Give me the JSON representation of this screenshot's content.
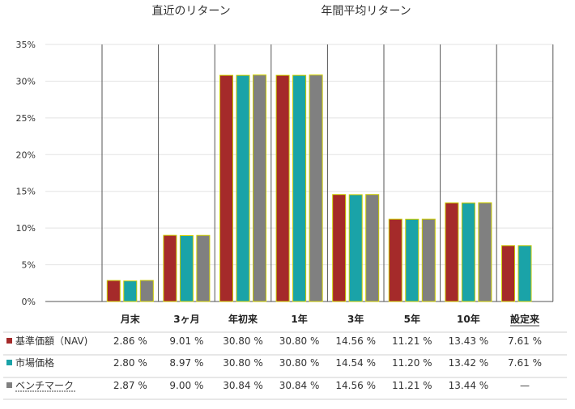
{
  "group_titles": {
    "recent": "直近のリターン",
    "annual": "年間平均リターン"
  },
  "chart_data": {
    "type": "bar",
    "categories": [
      "月末",
      "3ヶ月",
      "年初来",
      "1年",
      "3年",
      "5年",
      "10年",
      "設定来"
    ],
    "series": [
      {
        "name": "基準価額（NAV)",
        "color": "#a52a2a",
        "values": [
          2.86,
          9.01,
          30.8,
          30.8,
          14.56,
          11.21,
          13.43,
          7.61
        ],
        "labels": [
          "2.86 %",
          "9.01 %",
          "30.80 %",
          "30.80 %",
          "14.56 %",
          "11.21 %",
          "13.43 %",
          "7.61 %"
        ]
      },
      {
        "name": "市場価格",
        "color": "#1aa3a8",
        "values": [
          2.8,
          8.97,
          30.8,
          30.8,
          14.54,
          11.2,
          13.42,
          7.61
        ],
        "labels": [
          "2.80 %",
          "8.97 %",
          "30.80 %",
          "30.80 %",
          "14.54 %",
          "11.20 %",
          "13.42 %",
          "7.61 %"
        ]
      },
      {
        "name": "ベンチマーク",
        "color": "#808080",
        "values": [
          2.87,
          9.0,
          30.84,
          30.84,
          14.56,
          11.21,
          13.44,
          null
        ],
        "labels": [
          "2.87 %",
          "9.00 %",
          "30.84 %",
          "30.84 %",
          "14.56 %",
          "11.21 %",
          "13.44 %",
          "—"
        ]
      }
    ],
    "yticks": [
      "0%",
      "5%",
      "10%",
      "15%",
      "20%",
      "25%",
      "30%",
      "35%"
    ],
    "ylim": [
      0,
      35
    ],
    "bar_border_color": "#cccc00",
    "grid": true,
    "legend": "table-below"
  }
}
